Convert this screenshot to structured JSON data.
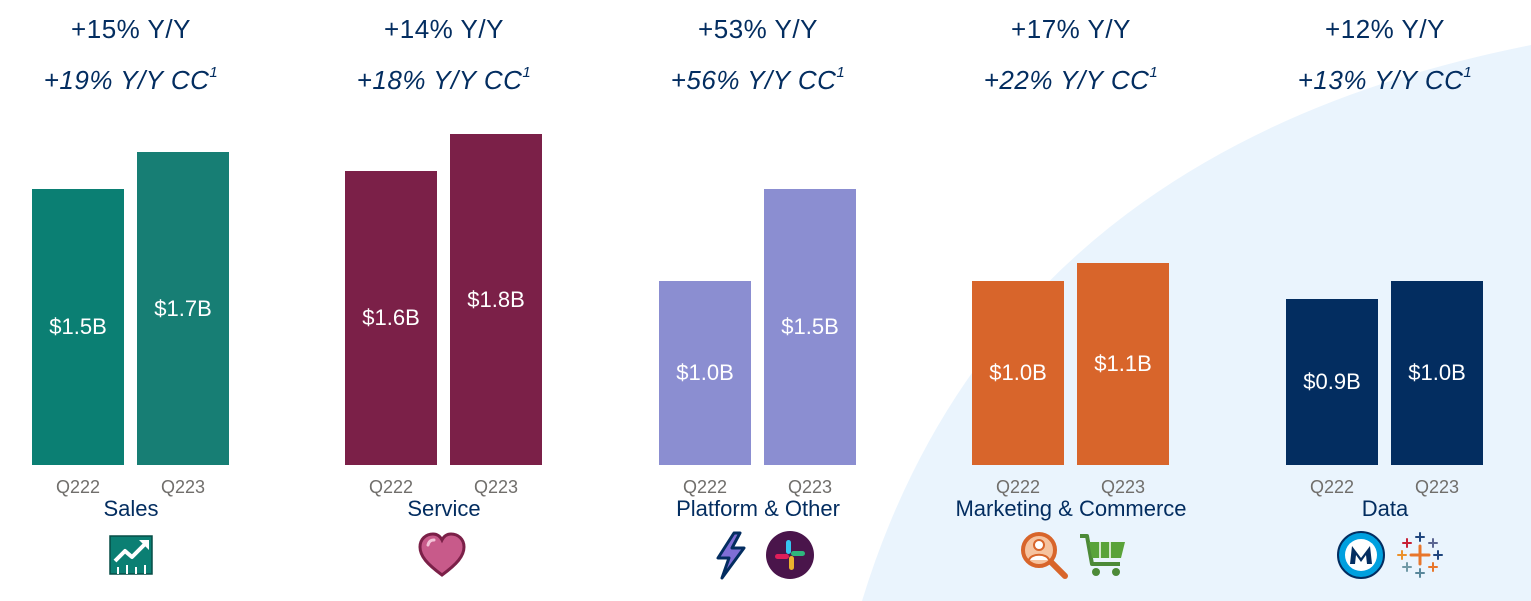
{
  "chart_data": {
    "type": "bar",
    "title": "",
    "ylabel": "",
    "ylim": [
      0,
      2.0
    ],
    "grid": false,
    "groups": [
      {
        "category": "Sales",
        "yoy": "+15% Y/Y",
        "yoy_cc": "+19% Y/Y CC",
        "footnote": "1",
        "color": "#0b7f73",
        "color_alt": "#177e74",
        "bars": [
          {
            "x": "Q222",
            "value": 1.5,
            "label": "$1.5B"
          },
          {
            "x": "Q223",
            "value": 1.7,
            "label": "$1.7B"
          }
        ],
        "icons": [
          "sales-trend-icon"
        ]
      },
      {
        "category": "Service",
        "yoy": "+14% Y/Y",
        "yoy_cc": "+18% Y/Y CC",
        "footnote": "1",
        "color": "#7b2048",
        "color_alt": "#7b2048",
        "bars": [
          {
            "x": "Q222",
            "value": 1.6,
            "label": "$1.6B"
          },
          {
            "x": "Q223",
            "value": 1.8,
            "label": "$1.8B"
          }
        ],
        "icons": [
          "heart-icon"
        ]
      },
      {
        "category": "Platform & Other",
        "yoy": "+53% Y/Y",
        "yoy_cc": "+56% Y/Y CC",
        "footnote": "1",
        "color": "#8b8ed1",
        "color_alt": "#8b8ed1",
        "bars": [
          {
            "x": "Q222",
            "value": 1.0,
            "label": "$1.0B"
          },
          {
            "x": "Q223",
            "value": 1.5,
            "label": "$1.5B"
          }
        ],
        "icons": [
          "lightning-bolt-icon",
          "slack-icon"
        ]
      },
      {
        "category": "Marketing & Commerce",
        "yoy": "+17% Y/Y",
        "yoy_cc": "+22% Y/Y CC",
        "footnote": "1",
        "color": "#d8652b",
        "color_alt": "#d8652b",
        "bars": [
          {
            "x": "Q222",
            "value": 1.0,
            "label": "$1.0B"
          },
          {
            "x": "Q223",
            "value": 1.1,
            "label": "$1.1B"
          }
        ],
        "icons": [
          "magnifier-person-icon",
          "shopping-cart-icon"
        ]
      },
      {
        "category": "Data",
        "yoy": "+12% Y/Y",
        "yoy_cc": "+13% Y/Y CC",
        "footnote": "1",
        "color": "#032d60",
        "color_alt": "#032d60",
        "bars": [
          {
            "x": "Q222",
            "value": 0.9,
            "label": "$0.9B"
          },
          {
            "x": "Q223",
            "value": 1.0,
            "label": "$1.0B"
          }
        ],
        "icons": [
          "mulesoft-icon",
          "tableau-icon"
        ]
      }
    ]
  },
  "colors": {
    "text_navy": "#032d60",
    "tick_gray": "#706e6b",
    "background_arc": "#eaf4fd"
  }
}
